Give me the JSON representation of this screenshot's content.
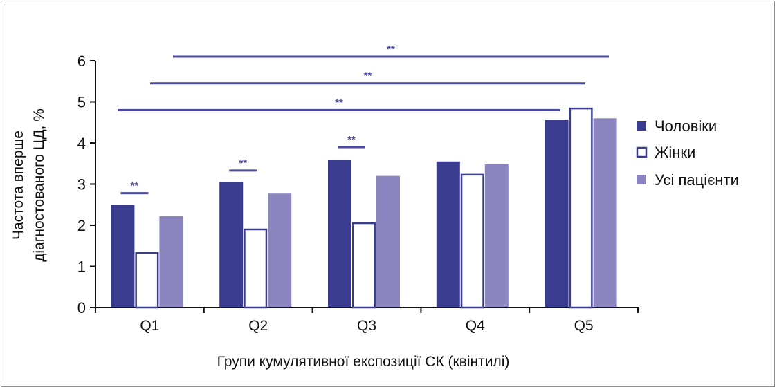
{
  "chart_data": {
    "type": "bar",
    "title": "",
    "xlabel": "Групи кумулятивної експозиції СК (квінтилі)",
    "ylabel_lines": [
      "Частота вперше",
      "діагностованого ЦД, %"
    ],
    "categories": [
      "Q1",
      "Q2",
      "Q3",
      "Q4",
      "Q5"
    ],
    "ylim": [
      0,
      6
    ],
    "yticks": [
      "0",
      "1",
      "2",
      "3",
      "4",
      "5",
      "6"
    ],
    "grid": false,
    "legend_position": "right",
    "series": [
      {
        "name": "Чоловіки",
        "values": [
          2.5,
          3.05,
          3.58,
          3.55,
          4.57
        ]
      },
      {
        "name": "Жінки",
        "values": [
          1.35,
          1.92,
          2.07,
          3.25,
          4.86
        ]
      },
      {
        "name": "Усі пацієнти",
        "values": [
          2.22,
          2.77,
          3.2,
          3.48,
          4.6
        ]
      }
    ],
    "significance": [
      {
        "label": "**",
        "from": "Q1",
        "to": "Q5",
        "level": 6.1
      },
      {
        "label": "**",
        "from": "Q1",
        "to": "Q5",
        "level": 5.45
      },
      {
        "label": "**",
        "from": "Q1",
        "to": "Q5",
        "level": 4.8
      },
      {
        "label": "**",
        "from": "Q1",
        "to": "Q1",
        "level": 2.78
      },
      {
        "label": "**",
        "from": "Q2",
        "to": "Q2",
        "level": 3.33
      },
      {
        "label": "**",
        "from": "Q3",
        "to": "Q3",
        "level": 3.9
      }
    ]
  },
  "colors": {
    "men": "#3a3c8f",
    "women_fill": "#ffffff",
    "women_stroke": "#3a3c8f",
    "all": "#8c86c0",
    "sig_line": "#4a4a9c",
    "axis": "#111111"
  }
}
